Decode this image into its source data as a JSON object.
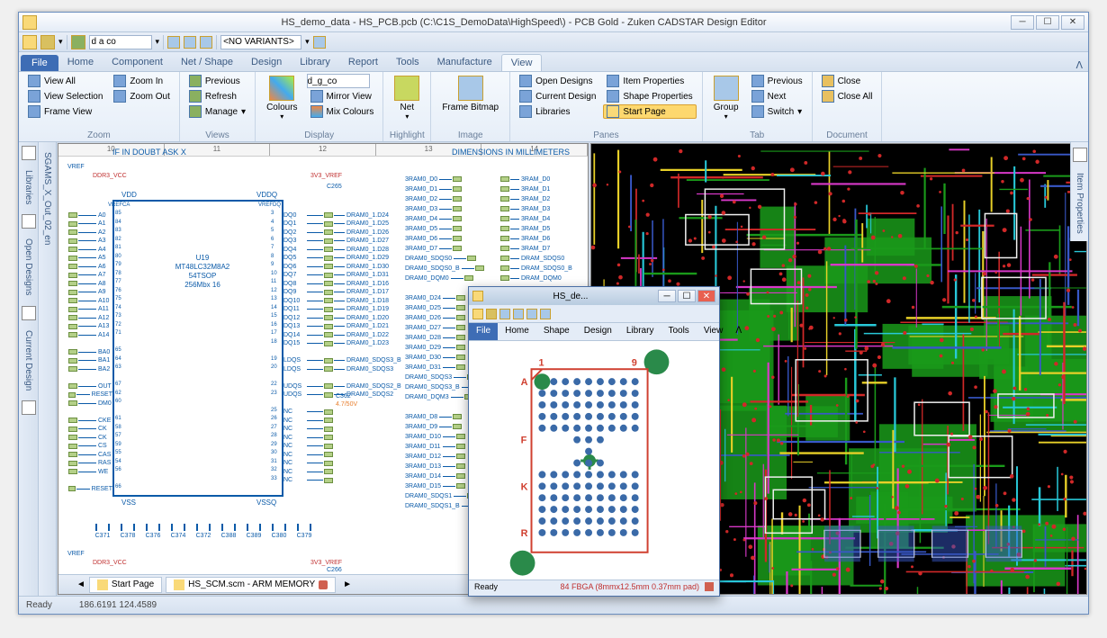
{
  "title": "HS_demo_data - HS_PCB.pcb (C:\\C1S_DemoData\\HighSpeed\\) - PCB Gold - Zuken CADSTAR Design Editor",
  "qat": {
    "dropdown1": "d a co",
    "dropdown2": "<NO VARIANTS>"
  },
  "ribbon": {
    "file": "File",
    "tabs": [
      "Home",
      "Component",
      "Net / Shape",
      "Design",
      "Library",
      "Report",
      "Tools",
      "Manufacture",
      "View"
    ],
    "active_tab": "View",
    "groups": {
      "zoom": {
        "label": "Zoom",
        "items": [
          "View All",
          "View Selection",
          "Frame View",
          "Zoom In",
          "Zoom Out"
        ]
      },
      "views": {
        "label": "Views",
        "items": [
          "Previous",
          "Refresh",
          "Manage"
        ]
      },
      "display": {
        "label": "Display",
        "colours": "Colours",
        "input": "d_g_co",
        "items": [
          "Mirror View",
          "Mix Colours"
        ]
      },
      "highlight": {
        "label": "Highlight",
        "item": "Net"
      },
      "image": {
        "label": "Image",
        "item": "Frame\nBitmap"
      },
      "panes": {
        "label": "Panes",
        "items": [
          "Open Designs",
          "Current Design",
          "Libraries",
          "Item Properties",
          "Shape Properties",
          "Start Page"
        ]
      },
      "tab": {
        "label": "Tab",
        "group": "Group",
        "items": [
          "Previous",
          "Next",
          "Switch"
        ]
      },
      "document": {
        "label": "Document",
        "items": [
          "Close",
          "Close All"
        ]
      }
    }
  },
  "side_tabs_left": [
    "Libraries",
    "Open Designs",
    "Current Design"
  ],
  "side_extra": "SGAMS_X_Out_02_en",
  "side_tabs_right": [
    "Item Properties"
  ],
  "schematic": {
    "header_left": "IF IN DOUBT ASK X",
    "header_right": "DIMENSIONS IN MILLIMETERS",
    "ruler_marks": [
      "10",
      "11",
      "12",
      "13",
      "14"
    ],
    "chip": {
      "refdes": "U19",
      "part": "MT48LC32M8A2",
      "pkg": "54TSOP",
      "desc": "256Mbx 16",
      "tl": "VDD",
      "tr": "VDDQ",
      "bl": "VSS",
      "br": "VSSQ",
      "corner_tl": "VREFCA",
      "corner_tr": "VREFDQ"
    },
    "nets_power_top": [
      "DDR3_VCC",
      "3V3_VREF"
    ],
    "nets_power_bot": [
      "DDR3_VCC",
      "3V3_VREF"
    ],
    "vref_label": "VREF",
    "c_top": "C265",
    "c_bot": "C266",
    "left_pins": [
      "A0",
      "A1",
      "A2",
      "A3",
      "A4",
      "A5",
      "A6",
      "A7",
      "A8",
      "A9",
      "A10",
      "A11",
      "A12",
      "A13",
      "A14",
      "",
      "BA0",
      "BA1",
      "BA2",
      "",
      "OUT",
      "RESET",
      "DM0",
      "",
      "CKE",
      "CK",
      "CK",
      "CS",
      "CAS",
      "RAS",
      "WE",
      "",
      "RESET"
    ],
    "left_pin_nos": [
      "85",
      "84",
      "83",
      "82",
      "81",
      "80",
      "79",
      "78",
      "77",
      "76",
      "75",
      "74",
      "73",
      "72",
      "71",
      "",
      "65",
      "64",
      "63",
      "",
      "67",
      "62",
      "60",
      "",
      "61",
      "58",
      "57",
      "59",
      "55",
      "54",
      "56",
      "",
      "66"
    ],
    "right_pins": [
      "DQ0",
      "DQ1",
      "DQ2",
      "DQ3",
      "DQ4",
      "DQ5",
      "DQ6",
      "DQ7",
      "DQ8",
      "DQ9",
      "DQ10",
      "DQ11",
      "DQ12",
      "DQ13",
      "DQ14",
      "DQ15",
      "",
      "LDQS",
      "LDQS",
      "",
      "UDQS",
      "UDQS",
      "",
      "NC",
      "NC",
      "NC",
      "NC",
      "NC",
      "NC",
      "NC",
      "NC",
      "NC"
    ],
    "right_pin_nos": [
      "3",
      "4",
      "5",
      "6",
      "7",
      "8",
      "9",
      "10",
      "11",
      "12",
      "13",
      "14",
      "15",
      "16",
      "17",
      "18",
      "",
      "19",
      "20",
      "",
      "22",
      "23",
      "",
      "25",
      "26",
      "27",
      "28",
      "29",
      "30",
      "31",
      "32",
      "33"
    ],
    "nets_mid": [
      "DRAM0_1.D24",
      "DRAM0_1.D25",
      "DRAM0_1.D26",
      "DRAM0_1.D27",
      "DRAM0_1.D28",
      "DRAM0_1.D29",
      "DRAM0_1.D30",
      "DRAM0_1.D31",
      "DRAM0_1.D16",
      "DRAM0_1.D17",
      "DRAM0_1.D18",
      "DRAM0_1.D19",
      "DRAM0_1.D20",
      "DRAM0_1.D21",
      "DRAM0_1.D22",
      "DRAM0_1.D23",
      "",
      "DRAM0_SDQS3_B",
      "DRAM0_SDQS3",
      "",
      "DRAM0_SDQS2_B",
      "DRAM0_SDQS2"
    ],
    "nets_col3": [
      "3RAM0_D0",
      "3RAM0_D1",
      "3RAM0_D2",
      "3RAM0_D3",
      "3RAM0_D4",
      "3RAM0_D5",
      "3RAM0_D6",
      "3RAM0_D7",
      "DRAM0_SDQS0",
      "DRAM0_SDQS0_B",
      "DRAM0_DQM0",
      "",
      "3RAM0_D24",
      "3RAM0_D25",
      "3RAM0_D26",
      "3RAM0_D27",
      "3RAM0_D28",
      "3RAM0_D29",
      "3RAM0_D30",
      "3RAM0_D31",
      "DRAM0_SDQS3",
      "DRAM0_SDQS3_B",
      "DRAM0_DQM3",
      "",
      "3RAM0_D8",
      "3RAM0_D9",
      "3RAM0_D10",
      "3RAM0_D11",
      "3RAM0_D12",
      "3RAM0_D13",
      "3RAM0_D14",
      "3RAM0_D15",
      "DRAM0_SDQS1",
      "DRAM0_SDQS1_B"
    ],
    "nets_col4": [
      "3RAM_D0",
      "3RAM_D1",
      "3RAM_D2",
      "3RAM_D3",
      "3RAM_D4",
      "3RAM_D5",
      "3RAM_D6",
      "3RAM_D7",
      "DRAM_SDQS0",
      "DRAM_SDQS0_B",
      "DRAM_DQM0",
      "",
      "",
      "",
      "",
      "",
      "",
      "",
      "",
      "",
      "",
      "",
      "",
      "",
      "3RAM_D8",
      "3RAM_D9",
      "3RAM_D10",
      "3RAM_D11",
      "3RAM_D12",
      "3RAM_D13",
      "3RAM_D14",
      "3RAM_D15"
    ],
    "caps_bottom": [
      "C371",
      "C378",
      "C376",
      "C374",
      "C372",
      "C388",
      "C389",
      "C380",
      "C379"
    ],
    "cap_mid": "C362",
    "cap_val": "4.7/50V",
    "doc_tabs": [
      {
        "label": "Start Page",
        "closable": false
      },
      {
        "label": "HS_SCM.scm - ARM MEMORY",
        "closable": true
      }
    ]
  },
  "status": {
    "ready": "Ready",
    "coords": "186.6191  124.4589"
  },
  "float": {
    "title": "HS_de...",
    "tabs": [
      "Home",
      "Shape",
      "Design",
      "Library",
      "Tools",
      "View"
    ],
    "file": "File",
    "row_labels": [
      "A",
      "F",
      "K",
      "R"
    ],
    "col_labels": [
      "1",
      "9"
    ],
    "status_left": "Ready",
    "status_right": "84 FBGA (8mmx12.5mm 0.37mm pad)",
    "bga": {
      "rows": 14,
      "cols": 9,
      "missing": [
        [
          0,
          0
        ],
        [
          5,
          0
        ],
        [
          5,
          1
        ],
        [
          5,
          2
        ],
        [
          5,
          6
        ],
        [
          5,
          7
        ],
        [
          5,
          8
        ],
        [
          6,
          0
        ],
        [
          6,
          1
        ],
        [
          6,
          2
        ],
        [
          6,
          3
        ],
        [
          6,
          5
        ],
        [
          6,
          6
        ],
        [
          6,
          7
        ],
        [
          6,
          8
        ],
        [
          7,
          0
        ],
        [
          7,
          1
        ],
        [
          7,
          2
        ],
        [
          7,
          6
        ],
        [
          7,
          7
        ],
        [
          7,
          8
        ]
      ],
      "outline_color": "#d04030",
      "pad_color": "#3a6aa8",
      "big_pad": "#2a8a4a"
    }
  },
  "colors": {
    "pcb_bg": "#000000",
    "pcb_green": "#1a9a1a",
    "pcb_red": "#d02828",
    "pcb_yellow": "#e8d028",
    "pcb_magenta": "#d838c8",
    "pcb_cyan": "#28c8d8",
    "pcb_white": "#f0f0f0",
    "pcb_blue": "#3858c8"
  }
}
